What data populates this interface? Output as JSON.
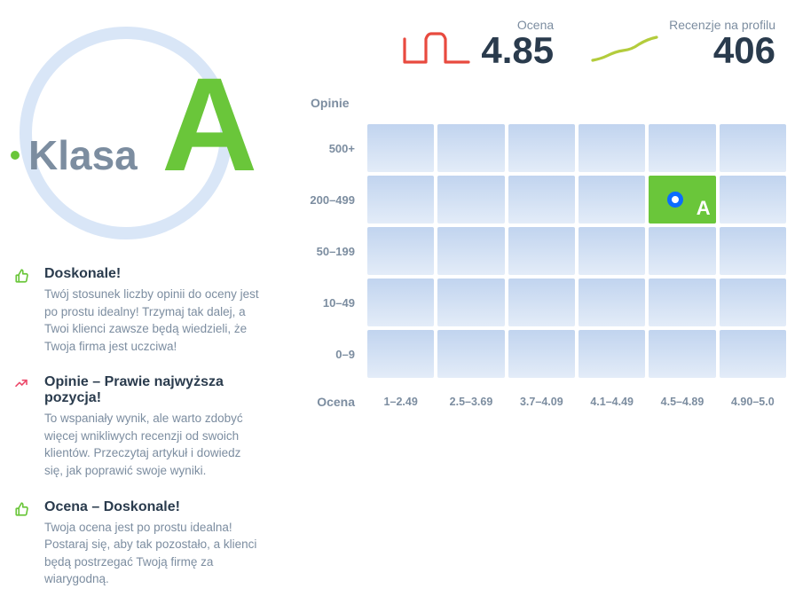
{
  "badge": {
    "label": "Klasa",
    "grade": "A",
    "circle_color": "#d9e6f7",
    "label_color": "#7c8da0",
    "grade_color": "#6ac63a"
  },
  "tips": [
    {
      "icon": "thumb",
      "title": "Doskonale!",
      "text": "Twój stosunek liczby opinii do oceny jest po prostu idealny! Trzymaj tak dalej, a Twoi klienci zawsze będą wiedzieli, że Twoja firma jest uczciwa!"
    },
    {
      "icon": "trend",
      "title": "Opinie – Prawie najwyższa pozycja!",
      "text": "To wspaniały wynik, ale warto zdobyć więcej wnikliwych recenzji od swoich klientów. Przeczytaj artykuł i dowiedz się, jak poprawić swoje wyniki."
    },
    {
      "icon": "thumb",
      "title": "Ocena – Doskonale!",
      "text": "Twoja ocena jest po prostu idealna! Postaraj się, aby tak pozostało, a klienci będą postrzegać Twoją firmę za wiarygodną."
    }
  ],
  "metrics": {
    "rating": {
      "label": "Ocena",
      "value": "4.85",
      "spark_color": "#e84a3f"
    },
    "reviews": {
      "label": "Recenzje na profilu",
      "value": "406",
      "spark_color": "#b3cc3c"
    }
  },
  "grid": {
    "y_title": "Opinie",
    "x_title": "Ocena",
    "rows": [
      "500+",
      "200–499",
      "50–199",
      "10–49",
      "0–9"
    ],
    "cols": [
      "1–2.49",
      "2.5–3.69",
      "3.7–4.09",
      "4.1–4.49",
      "4.5–4.89",
      "4.90–5.0"
    ],
    "highlight": {
      "row": 1,
      "col": 4,
      "letter": "A"
    },
    "cell_gradient_top": "#c1d4ef",
    "cell_gradient_bottom": "#e3ecf8",
    "highlight_color": "#6ac63a",
    "marker_border": "#0b6cff"
  }
}
